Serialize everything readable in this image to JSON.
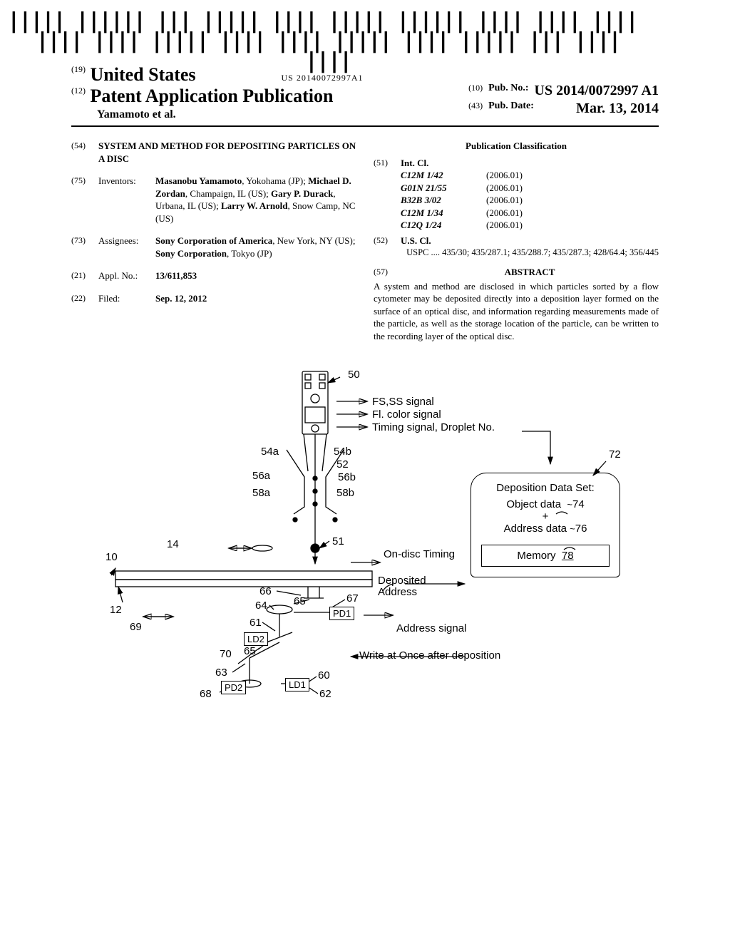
{
  "barcode_text": "US 20140072997A1",
  "header": {
    "country_code": "(19)",
    "country": "United States",
    "pub_code": "(12)",
    "pub_title": "Patent Application Publication",
    "authors": "Yamamoto et al.",
    "pub_no_code": "(10)",
    "pub_no_label": "Pub. No.:",
    "pub_no_value": "US 2014/0072997 A1",
    "pub_date_code": "(43)",
    "pub_date_label": "Pub. Date:",
    "pub_date_value": "Mar. 13, 2014"
  },
  "biblio": {
    "title_code": "(54)",
    "title": "SYSTEM AND METHOD FOR DEPOSITING PARTICLES ON A DISC",
    "inventors_code": "(75)",
    "inventors_label": "Inventors:",
    "inventors_value": "<span class='bold'>Masanobu Yamamoto</span>, Yokohama (JP); <span class='bold'>Michael D. Zordan</span>, Champaign, IL (US); <span class='bold'>Gary P. Durack</span>, Urbana, IL (US); <span class='bold'>Larry W. Arnold</span>, Snow Camp, NC (US)",
    "assignees_code": "(73)",
    "assignees_label": "Assignees:",
    "assignees_value": "<span class='bold'>Sony Corporation of America</span>, New York, NY (US); <span class='bold'>Sony Corporation</span>, Tokyo (JP)",
    "appl_code": "(21)",
    "appl_label": "Appl. No.:",
    "appl_value": "13/611,853",
    "filed_code": "(22)",
    "filed_label": "Filed:",
    "filed_value": "Sep. 12, 2012"
  },
  "classification": {
    "title": "Publication Classification",
    "intcl_code": "(51)",
    "intcl_label": "Int. Cl.",
    "items": [
      {
        "cls": "C12M 1/42",
        "yr": "(2006.01)"
      },
      {
        "cls": "G01N 21/55",
        "yr": "(2006.01)"
      },
      {
        "cls": "B32B 3/02",
        "yr": "(2006.01)"
      },
      {
        "cls": "C12M 1/34",
        "yr": "(2006.01)"
      },
      {
        "cls": "C12Q 1/24",
        "yr": "(2006.01)"
      }
    ],
    "uscl_code": "(52)",
    "uscl_label": "U.S. Cl.",
    "uspc_prefix": "USPC",
    "uspc_value": ".... <span class='bold'>435/30</span>; 435/287.1; 435/288.7; 435/287.3; 428/64.4; 356/445"
  },
  "abstract": {
    "code": "(57)",
    "label": "ABSTRACT",
    "text": "A system and method are disclosed in which particles sorted by a flow cytometer may be deposited directly into a deposition layer formed on the surface of an optical disc, and information regarding measurements made of the particle, as well as the storage location of the particle, can be written to the recording layer of the optical disc."
  },
  "figure": {
    "labels": {
      "l50": "50",
      "fs": "FS,SS signal",
      "fl": "Fl. color signal",
      "timing": "Timing signal, Droplet No.",
      "l54a": "54a",
      "l54b": "54b",
      "l52": "52",
      "l56a": "56a",
      "l56b": "56b",
      "l58a": "58a",
      "l58b": "58b",
      "l51": "51",
      "l10": "10",
      "l14": "14",
      "l12": "12",
      "l66": "66",
      "l64": "64",
      "l61": "61",
      "l65a": "65",
      "l65b": "65",
      "l67": "67",
      "l69": "69",
      "l70": "70",
      "l63": "63",
      "l68": "68",
      "l60": "60",
      "l62": "62",
      "ondisc": "On-disc Timing",
      "deposited": "Deposited Address",
      "addrsig": "Address signal",
      "write": "Write at Once after deposition",
      "l72": "72",
      "ddset": "Deposition Data Set:",
      "objdata": "Object data",
      "l74": "74",
      "plus": "+",
      "addrdata": "Address data",
      "l76": "76",
      "memory": "Memory",
      "l78": "78",
      "pd1": "PD1",
      "pd2": "PD2",
      "ld1": "LD1",
      "ld2": "LD2"
    },
    "colors": {
      "line": "#000000",
      "bg": "#ffffff"
    },
    "line_width": 1.3
  }
}
